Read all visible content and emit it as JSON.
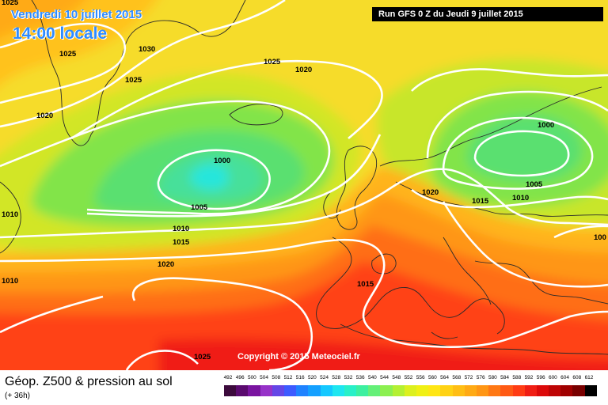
{
  "map": {
    "date_label": "Vendredi 10 juillet 2015",
    "time_label": "14:00 locale",
    "run_label": "Run GFS 0 Z du Jeudi 9 juillet 2015",
    "copyright": "Copyright © 2015 Meteociel.fr",
    "product_title": "Géop. Z500 & pression au sol",
    "lead_time": "(+ 36h)",
    "isobar_labels": [
      "1025",
      "1030",
      "1025",
      "1025",
      "1020",
      "1020",
      "1000",
      "1005",
      "1010",
      "1015",
      "1020",
      "1010",
      "1010",
      "1025",
      "1015",
      "1000",
      "1005",
      "1010",
      "1015",
      "1020",
      "100",
      "1025"
    ],
    "isobar_color": "#ffffff",
    "legend": {
      "values": [
        "492",
        "496",
        "500",
        "504",
        "508",
        "512",
        "516",
        "520",
        "524",
        "528",
        "532",
        "536",
        "540",
        "544",
        "548",
        "552",
        "556",
        "560",
        "564",
        "568",
        "572",
        "576",
        "580",
        "584",
        "588",
        "592",
        "596",
        "600",
        "604",
        "608",
        "612"
      ],
      "colors": [
        "#3c0a3c",
        "#5a0a6e",
        "#7a14a0",
        "#9632c8",
        "#6446e6",
        "#3c5aff",
        "#1e82ff",
        "#14a0ff",
        "#14c8ff",
        "#1ee6f0",
        "#28f0c8",
        "#3cf0a0",
        "#64f078",
        "#8cf050",
        "#b4f032",
        "#dcf01e",
        "#f0f014",
        "#ffe614",
        "#ffd214",
        "#ffbe14",
        "#ffaa14",
        "#ff9614",
        "#ff7814",
        "#ff5a14",
        "#ff3c14",
        "#f01e14",
        "#dc0a0a",
        "#be0505",
        "#a00000",
        "#780000",
        "#000000"
      ]
    }
  }
}
